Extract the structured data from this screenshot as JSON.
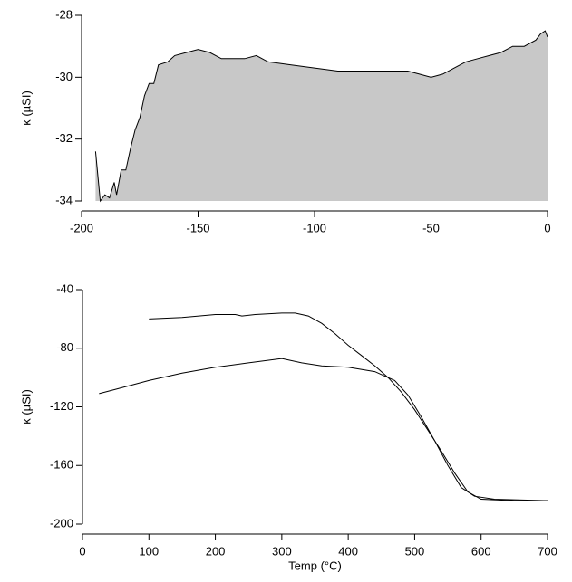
{
  "chart_data": [
    {
      "type": "area",
      "ylabel": "κ (µSI)",
      "color": "#c8c8c8",
      "line_color": "#000000",
      "x": [
        -194,
        -192,
        -190,
        -188,
        -186,
        -185,
        -183,
        -181,
        -179,
        -177,
        -175,
        -173,
        -171,
        -169,
        -167,
        -163,
        -160,
        -155,
        -150,
        -145,
        -140,
        -130,
        -125,
        -120,
        -110,
        -100,
        -90,
        -80,
        -70,
        -60,
        -55,
        -50,
        -45,
        -40,
        -35,
        -30,
        -25,
        -20,
        -15,
        -10,
        -5,
        -3,
        -1,
        0
      ],
      "values": [
        -32.4,
        -34,
        -33.8,
        -33.9,
        -33.4,
        -33.8,
        -33,
        -33,
        -32.3,
        -31.7,
        -31.3,
        -30.6,
        -30.2,
        -30.2,
        -29.6,
        -29.5,
        -29.3,
        -29.2,
        -29.1,
        -29.2,
        -29.4,
        -29.4,
        -29.3,
        -29.5,
        -29.6,
        -29.7,
        -29.8,
        -29.8,
        -29.8,
        -29.8,
        -29.9,
        -30,
        -29.9,
        -29.7,
        -29.5,
        -29.4,
        -29.3,
        -29.2,
        -29,
        -29,
        -28.8,
        -28.6,
        -28.5,
        -28.7
      ],
      "xlim": [
        -200,
        0
      ],
      "xticks": [
        -200,
        -150,
        -100,
        -50,
        0
      ],
      "ylim": [
        -34,
        -28
      ],
      "yticks": [
        -34,
        -32,
        -30,
        -28
      ]
    },
    {
      "type": "line",
      "xlabel": "Temp (°C)",
      "ylabel": "κ (µSI)",
      "series": [
        {
          "color": "#000000",
          "x": [
            100,
            150,
            200,
            230,
            240,
            260,
            300,
            320,
            340,
            360,
            380,
            400,
            420,
            440,
            460,
            480,
            500,
            520,
            540,
            560,
            580,
            600,
            650,
            700
          ],
          "values": [
            -60,
            -59,
            -57,
            -57,
            -58,
            -57,
            -56,
            -56,
            -58,
            -63,
            -70,
            -78,
            -85,
            -92,
            -100,
            -110,
            -122,
            -136,
            -150,
            -165,
            -178,
            -183,
            -184,
            -184
          ]
        },
        {
          "color": "#000000",
          "x": [
            25,
            50,
            100,
            150,
            200,
            250,
            300,
            330,
            360,
            400,
            440,
            470,
            490,
            510,
            530,
            550,
            570,
            590,
            620,
            700
          ],
          "values": [
            -111,
            -108,
            -102,
            -97,
            -93,
            -90,
            -87,
            -90,
            -92,
            -93,
            -96,
            -102,
            -112,
            -127,
            -143,
            -160,
            -175,
            -181,
            -183,
            -184
          ]
        }
      ],
      "xlim": [
        0,
        700
      ],
      "xticks": [
        0,
        100,
        200,
        300,
        400,
        500,
        600,
        700
      ],
      "ylim": [
        -200,
        -40
      ],
      "yticks": [
        -200,
        -160,
        -120,
        -80,
        -40
      ]
    }
  ]
}
